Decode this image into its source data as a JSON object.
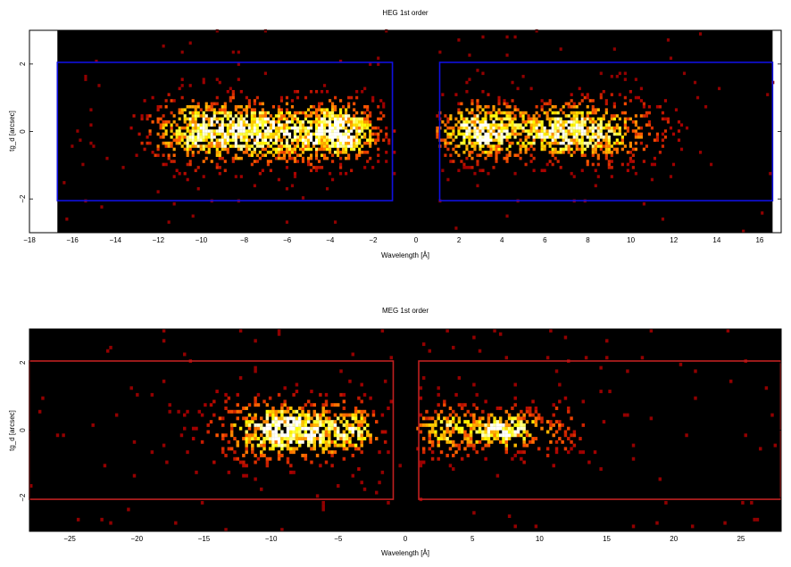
{
  "chart_data": [
    {
      "type": "heatmap",
      "title": "HEG 1st order",
      "xlabel": "Wavelength [Å]",
      "ylabel": "tg_d [arcsec]",
      "xlim": [
        -18,
        17
      ],
      "ylim": [
        -3,
        3
      ],
      "data_extent_x": [
        -16.7,
        16.6
      ],
      "xticks": [
        -18,
        -16,
        -14,
        -12,
        -10,
        -8,
        -6,
        -4,
        -2,
        0,
        2,
        4,
        6,
        8,
        10,
        12,
        14,
        16
      ],
      "yticks": [
        -2,
        0,
        2
      ],
      "grid": false,
      "legend": "none",
      "colormap": "hot",
      "background": "#000000",
      "extraction_regions": [
        {
          "x": [
            -16.7,
            -1.1
          ],
          "y": [
            -2.05,
            2.05
          ]
        },
        {
          "x": [
            1.1,
            16.6
          ],
          "y": [
            -2.05,
            2.05
          ]
        }
      ],
      "region_color": "#1010e0",
      "density_peaks": [
        {
          "x": -7.3,
          "y": 0,
          "sigma_x": 2.5,
          "sigma_y": 0.55,
          "intensity": 1.0
        },
        {
          "x": -3.5,
          "y": 0,
          "sigma_x": 1.1,
          "sigma_y": 0.5,
          "intensity": 0.9
        },
        {
          "x": -10.5,
          "y": 0,
          "sigma_x": 1.2,
          "sigma_y": 0.6,
          "intensity": 0.45
        },
        {
          "x": 2.9,
          "y": 0,
          "sigma_x": 1.2,
          "sigma_y": 0.5,
          "intensity": 1.0
        },
        {
          "x": 6.8,
          "y": 0,
          "sigma_x": 1.6,
          "sigma_y": 0.5,
          "intensity": 0.95
        },
        {
          "x": 9.5,
          "y": 0,
          "sigma_x": 1.6,
          "sigma_y": 0.6,
          "intensity": 0.35
        }
      ],
      "background_level": 0.008,
      "bin_size": [
        0.125,
        0.09
      ]
    },
    {
      "type": "heatmap",
      "title": "MEG 1st order",
      "xlabel": "Wavelength [Å]",
      "ylabel": "tg_d [arcsec]",
      "xlim": [
        -28,
        28
      ],
      "ylim": [
        -3,
        3
      ],
      "data_extent_x": [
        -28,
        28
      ],
      "xticks": [
        -25,
        -20,
        -15,
        -10,
        -5,
        0,
        5,
        10,
        15,
        20,
        25
      ],
      "yticks": [
        -2,
        0,
        2
      ],
      "grid": false,
      "legend": "none",
      "colormap": "hot",
      "background": "#000000",
      "extraction_regions": [
        {
          "x": [
            -28,
            -0.9
          ],
          "y": [
            -2.05,
            2.05
          ]
        },
        {
          "x": [
            1.0,
            28
          ],
          "y": [
            -2.05,
            2.05
          ]
        }
      ],
      "region_color": "#c02020",
      "density_peaks": [
        {
          "x": -7.8,
          "y": 0,
          "sigma_x": 2.3,
          "sigma_y": 0.45,
          "intensity": 1.0
        },
        {
          "x": -11.0,
          "y": 0,
          "sigma_x": 2.5,
          "sigma_y": 0.6,
          "intensity": 0.4
        },
        {
          "x": -3.8,
          "y": 0,
          "sigma_x": 1.2,
          "sigma_y": 0.55,
          "intensity": 0.55
        },
        {
          "x": 7.3,
          "y": 0,
          "sigma_x": 1.4,
          "sigma_y": 0.3,
          "intensity": 1.0
        },
        {
          "x": 3.2,
          "y": 0,
          "sigma_x": 1.6,
          "sigma_y": 0.45,
          "intensity": 0.7
        },
        {
          "x": 10.5,
          "y": 0,
          "sigma_x": 2.2,
          "sigma_y": 0.55,
          "intensity": 0.3
        }
      ],
      "background_level": 0.012,
      "bin_size": [
        0.22,
        0.1
      ]
    }
  ]
}
